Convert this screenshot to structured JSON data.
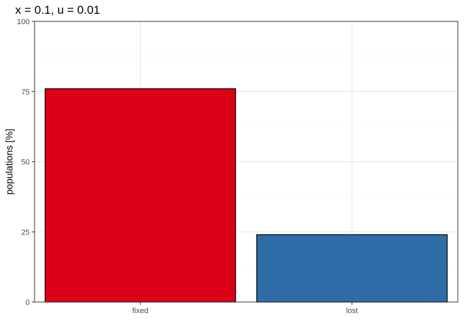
{
  "chart_data": {
    "type": "bar",
    "title": "x = 0.1, u = 0.01",
    "xlabel": "",
    "ylabel": "populations [%]",
    "categories": [
      "fixed",
      "lost"
    ],
    "values": [
      76,
      24
    ],
    "colors": [
      "#dc0017",
      "#2e6ca8"
    ],
    "ylim": [
      0,
      100
    ],
    "yticks": [
      0,
      25,
      50,
      75,
      100
    ],
    "grid": true,
    "legend": "none"
  }
}
